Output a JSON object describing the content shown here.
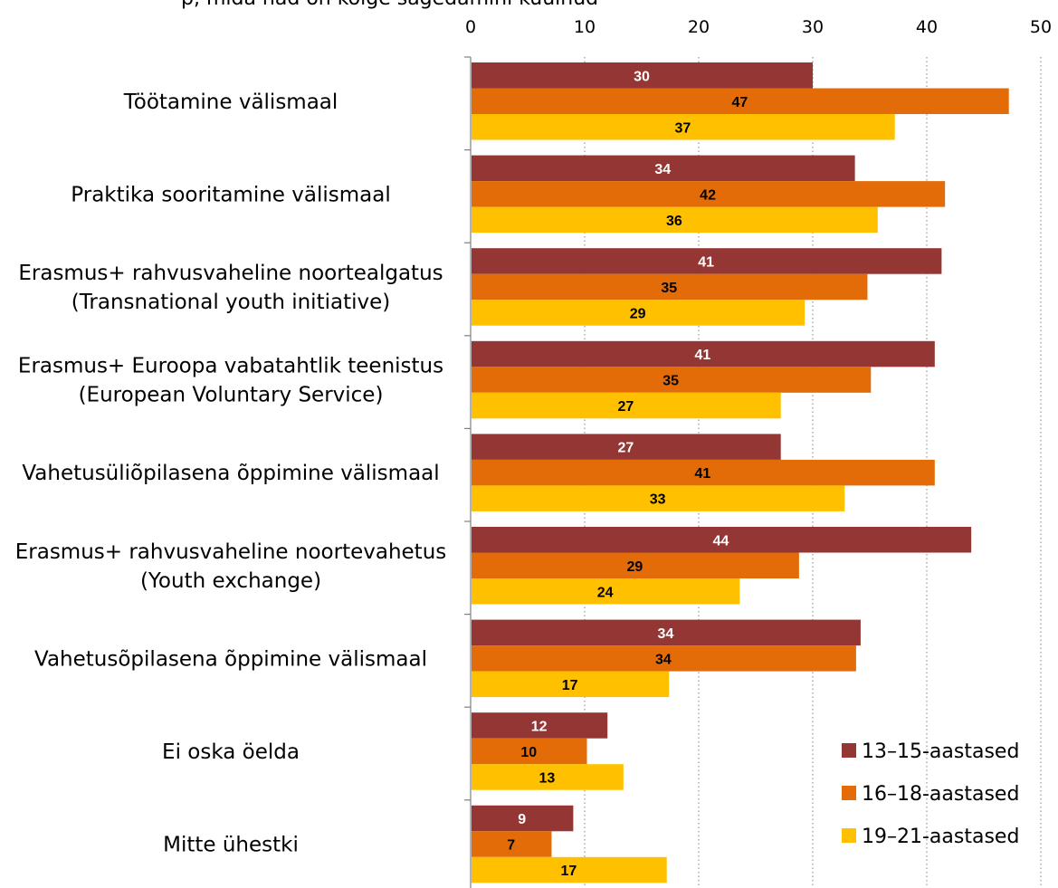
{
  "header_fragment": "p, mida nad on kõige sagedamini kuulnud",
  "chart_data": {
    "type": "bar",
    "orientation": "horizontal",
    "title": "",
    "xlabel": "",
    "ylabel": "",
    "xlim": [
      0,
      50
    ],
    "x_ticks": [
      "0",
      "10",
      "20",
      "30",
      "40",
      "50"
    ],
    "grid": true,
    "legend_position": "bottom-right",
    "categories": [
      [
        "Töötamine välismaal"
      ],
      [
        "Praktika sooritamine välismaal"
      ],
      [
        "Erasmus+ rahvusvaheline noortealgatus",
        "(Transnational youth initiative)"
      ],
      [
        "Erasmus+ Euroopa vabatahtlik teenistus",
        "(European Voluntary Service)"
      ],
      [
        "Vahetusüliõpilasena õppimine välismaal"
      ],
      [
        "Erasmus+ rahvusvaheline noortevahetus",
        "(Youth exchange)"
      ],
      [
        "Vahetusõpilasena õppimine välismaal"
      ],
      [
        "Ei oska öelda"
      ],
      [
        "Mitte ühestki"
      ]
    ],
    "series": [
      {
        "name": "13–15-aastased",
        "color": "#943634",
        "label_color": "#ffffff",
        "values": [
          30,
          33.7,
          41.3,
          40.7,
          27.2,
          43.9,
          34.2,
          12.0,
          9.0
        ],
        "labels": [
          "30",
          "34",
          "41",
          "41",
          "27",
          "44",
          "34",
          "12",
          "9"
        ]
      },
      {
        "name": "16–18-aastased",
        "color": "#E36C09",
        "label_color": "#000000",
        "values": [
          47.2,
          41.6,
          34.8,
          35.1,
          40.7,
          28.8,
          33.8,
          10.2,
          7.1
        ],
        "labels": [
          "47",
          "42",
          "35",
          "35",
          "41",
          "29",
          "34",
          "10",
          "7"
        ]
      },
      {
        "name": "19–21-aastased",
        "color": "#FFC000",
        "label_color": "#000000",
        "values": [
          37.2,
          35.7,
          29.3,
          27.2,
          32.8,
          23.6,
          17.4,
          13.4,
          17.2
        ],
        "labels": [
          "37",
          "36",
          "29",
          "27",
          "33",
          "24",
          "17",
          "13",
          "17"
        ]
      }
    ]
  }
}
